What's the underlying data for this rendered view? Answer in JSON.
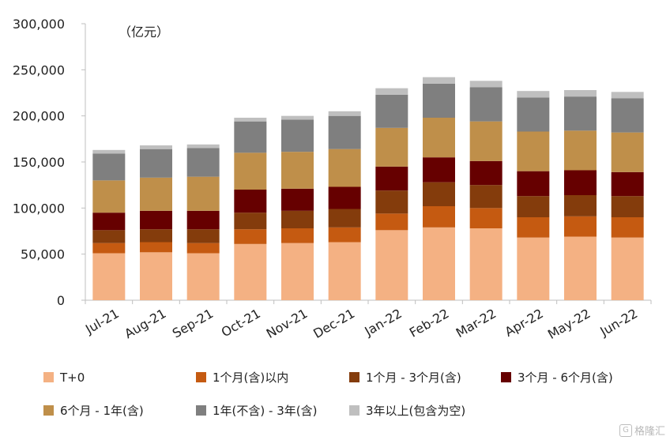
{
  "chart_data": {
    "type": "bar",
    "stacked": true,
    "unit_label": "（亿元）",
    "categories": [
      "Jul-21",
      "Aug-21",
      "Sep-21",
      "Oct-21",
      "Nov-21",
      "Dec-21",
      "Jan-22",
      "Feb-22",
      "Mar-22",
      "Apr-22",
      "May-22",
      "Jun-22"
    ],
    "ylim": [
      0,
      300000
    ],
    "yticks": [
      0,
      50000,
      100000,
      150000,
      200000,
      250000,
      300000
    ],
    "ytick_labels": [
      "0",
      "50,000",
      "100,000",
      "150,000",
      "200,000",
      "250,000",
      "300,000"
    ],
    "grid": false,
    "legend_position": "bottom",
    "series": [
      {
        "name": "T+0",
        "color": "#F4B183",
        "values": [
          51000,
          52000,
          51000,
          61000,
          62000,
          63000,
          76000,
          79000,
          78000,
          68000,
          69000,
          68000
        ]
      },
      {
        "name": "1个月(含)以内",
        "color": "#C55A11",
        "values": [
          11000,
          11000,
          11000,
          16000,
          16000,
          16000,
          18000,
          23000,
          22000,
          22000,
          22000,
          22000
        ]
      },
      {
        "name": "1个月 - 3个月(含)",
        "color": "#843C0C",
        "values": [
          14000,
          14000,
          15000,
          18000,
          19000,
          20000,
          25000,
          26000,
          25000,
          23000,
          23000,
          23000
        ]
      },
      {
        "name": "3个月 - 6个月(含)",
        "color": "#660000",
        "values": [
          19000,
          20000,
          20000,
          25000,
          24000,
          24000,
          26000,
          27000,
          26000,
          27000,
          27000,
          26000
        ]
      },
      {
        "name": "6个月 - 1年(含)",
        "color": "#BF8F4A",
        "values": [
          35000,
          36000,
          37000,
          40000,
          40000,
          41000,
          42000,
          43000,
          43000,
          43000,
          43000,
          43000
        ]
      },
      {
        "name": "1年(不含) - 3年(含)",
        "color": "#7F7F7F",
        "values": [
          29000,
          31000,
          31000,
          34000,
          35000,
          36000,
          36000,
          37000,
          37000,
          37000,
          37000,
          37000
        ]
      },
      {
        "name": "3年以上(包含为空)",
        "color": "#BFBFBF",
        "values": [
          4000,
          4000,
          4000,
          4000,
          4000,
          5000,
          7000,
          7000,
          7000,
          7000,
          7000,
          7000
        ]
      }
    ]
  },
  "watermark": {
    "text": "格隆汇"
  }
}
